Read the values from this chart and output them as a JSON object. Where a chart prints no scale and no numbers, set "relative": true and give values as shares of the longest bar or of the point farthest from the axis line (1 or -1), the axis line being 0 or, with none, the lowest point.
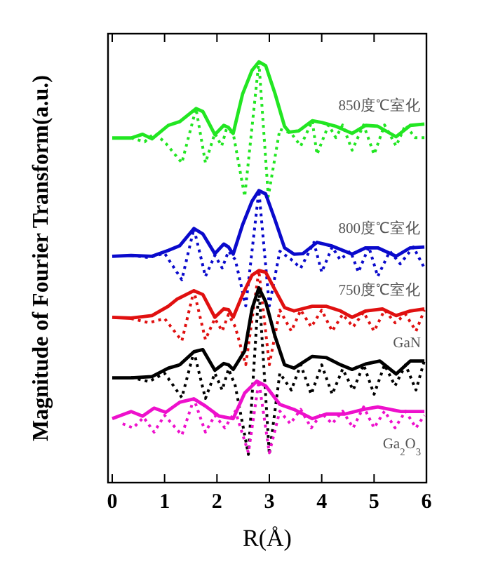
{
  "chart_data": {
    "type": "line",
    "relative": true,
    "xlabel": "R(Å)",
    "ylabel": "Magnitude of Fourier Transform(a.u.)",
    "xlim": [
      -0.08,
      6
    ],
    "xticks": [
      0,
      1,
      2,
      3,
      4,
      5,
      6
    ],
    "tick_labels": "x",
    "grid": false,
    "marker": "none",
    "series": [
      {
        "name": "850度℃室化",
        "color": "#22e622",
        "line_style": "solid",
        "x": [
          0,
          0.36,
          0.58,
          0.76,
          1.07,
          1.29,
          1.6,
          1.73,
          1.96,
          2.13,
          2.22,
          2.31,
          2.49,
          2.67,
          2.8,
          2.93,
          3.11,
          3.29,
          3.38,
          3.56,
          3.82,
          4.0,
          4.27,
          4.58,
          4.84,
          5.07,
          5.42,
          5.69,
          5.96
        ],
        "values": [
          0.819,
          0.819,
          0.828,
          0.817,
          0.849,
          0.858,
          0.889,
          0.882,
          0.827,
          0.849,
          0.844,
          0.83,
          0.924,
          0.98,
          1.0,
          0.991,
          0.924,
          0.847,
          0.833,
          0.836,
          0.86,
          0.856,
          0.847,
          0.83,
          0.849,
          0.847,
          0.822,
          0.849,
          0.852
        ]
      },
      {
        "color": "#22e622",
        "line_style": "dotted",
        "x": [
          0.36,
          0.62,
          0.8,
          1.0,
          1.33,
          1.6,
          1.78,
          1.96,
          2.09,
          2.18,
          2.31,
          2.53,
          2.8,
          2.98,
          3.2,
          3.42,
          3.6,
          3.82,
          3.91,
          4.13,
          4.27,
          4.4,
          4.58,
          4.8,
          5.0,
          5.2,
          5.42,
          5.6,
          5.78,
          5.96
        ],
        "values": [
          0.819,
          0.81,
          0.83,
          0.81,
          0.76,
          0.889,
          0.76,
          0.83,
          0.8,
          0.84,
          0.83,
          0.68,
          1.0,
          0.68,
          0.84,
          0.83,
          0.8,
          0.86,
          0.78,
          0.85,
          0.82,
          0.85,
          0.79,
          0.85,
          0.78,
          0.85,
          0.8,
          0.85,
          0.82,
          0.82
        ]
      },
      {
        "name": "800度℃室化",
        "color": "#0a0acc",
        "line_style": "solid",
        "x": [
          0,
          0.36,
          0.76,
          1.07,
          1.29,
          1.56,
          1.73,
          1.96,
          2.13,
          2.22,
          2.31,
          2.49,
          2.67,
          2.8,
          2.93,
          3.11,
          3.29,
          3.47,
          3.64,
          3.91,
          4.18,
          4.58,
          4.84,
          5.07,
          5.42,
          5.69,
          5.96
        ],
        "values": [
          0.538,
          0.54,
          0.538,
          0.552,
          0.563,
          0.604,
          0.591,
          0.544,
          0.567,
          0.56,
          0.543,
          0.613,
          0.669,
          0.694,
          0.686,
          0.624,
          0.558,
          0.543,
          0.544,
          0.571,
          0.563,
          0.543,
          0.558,
          0.558,
          0.538,
          0.558,
          0.56
        ]
      },
      {
        "color": "#0a0acc",
        "line_style": "dotted",
        "x": [
          0.36,
          0.7,
          1.0,
          1.33,
          1.56,
          1.78,
          1.96,
          2.1,
          2.22,
          2.35,
          2.55,
          2.8,
          3.0,
          3.2,
          3.42,
          3.6,
          3.85,
          4.0,
          4.2,
          4.35,
          4.55,
          4.7,
          4.9,
          5.07,
          5.3,
          5.5,
          5.75,
          5.96
        ],
        "values": [
          0.54,
          0.535,
          0.545,
          0.482,
          0.604,
          0.49,
          0.54,
          0.51,
          0.55,
          0.53,
          0.42,
          0.694,
          0.42,
          0.55,
          0.53,
          0.51,
          0.571,
          0.5,
          0.56,
          0.53,
          0.55,
          0.5,
          0.56,
          0.49,
          0.55,
          0.52,
          0.56,
          0.51
        ]
      },
      {
        "name": "750度℃室化",
        "color": "#e01010",
        "line_style": "solid",
        "x": [
          0,
          0.36,
          0.76,
          1.07,
          1.24,
          1.56,
          1.73,
          1.96,
          2.13,
          2.22,
          2.31,
          2.49,
          2.67,
          2.8,
          2.93,
          3.11,
          3.29,
          3.47,
          3.82,
          4.09,
          4.36,
          4.58,
          4.84,
          5.16,
          5.42,
          5.69,
          5.96
        ],
        "values": [
          0.393,
          0.391,
          0.397,
          0.419,
          0.436,
          0.456,
          0.447,
          0.393,
          0.413,
          0.411,
          0.393,
          0.447,
          0.493,
          0.504,
          0.5,
          0.458,
          0.416,
          0.408,
          0.419,
          0.419,
          0.408,
          0.393,
          0.408,
          0.413,
          0.397,
          0.408,
          0.413
        ]
      },
      {
        "color": "#e01010",
        "line_style": "dotted",
        "x": [
          0.36,
          0.7,
          1.0,
          1.33,
          1.56,
          1.78,
          1.96,
          2.1,
          2.22,
          2.35,
          2.55,
          2.8,
          3.0,
          3.2,
          3.42,
          3.6,
          3.8,
          4.0,
          4.2,
          4.4,
          4.6,
          4.8,
          5.0,
          5.2,
          5.4,
          5.6,
          5.8,
          5.96
        ],
        "values": [
          0.39,
          0.38,
          0.39,
          0.337,
          0.456,
          0.34,
          0.39,
          0.36,
          0.4,
          0.37,
          0.28,
          0.504,
          0.28,
          0.41,
          0.36,
          0.41,
          0.37,
          0.41,
          0.36,
          0.4,
          0.37,
          0.405,
          0.36,
          0.41,
          0.38,
          0.4,
          0.36,
          0.41
        ]
      },
      {
        "name": "GaN",
        "color": "#000000",
        "line_style": "solid",
        "x": [
          0,
          0.36,
          0.76,
          1.07,
          1.29,
          1.56,
          1.73,
          1.96,
          2.13,
          2.22,
          2.31,
          2.53,
          2.67,
          2.8,
          2.93,
          3.11,
          3.29,
          3.47,
          3.82,
          4.09,
          4.36,
          4.58,
          4.84,
          5.11,
          5.42,
          5.69,
          5.96
        ],
        "values": [
          0.249,
          0.249,
          0.252,
          0.272,
          0.28,
          0.311,
          0.316,
          0.267,
          0.283,
          0.28,
          0.269,
          0.313,
          0.413,
          0.463,
          0.43,
          0.347,
          0.28,
          0.272,
          0.3,
          0.297,
          0.28,
          0.269,
          0.282,
          0.289,
          0.258,
          0.289,
          0.289
        ]
      },
      {
        "color": "#000000",
        "line_style": "dotted",
        "x": [
          0.36,
          0.7,
          1.0,
          1.33,
          1.56,
          1.78,
          1.96,
          2.1,
          2.22,
          2.35,
          2.6,
          2.8,
          3.0,
          3.2,
          3.42,
          3.6,
          3.8,
          4.0,
          4.2,
          4.4,
          4.6,
          4.8,
          5.0,
          5.2,
          5.4,
          5.6,
          5.8,
          5.96
        ],
        "values": [
          0.25,
          0.24,
          0.26,
          0.202,
          0.311,
          0.2,
          0.26,
          0.22,
          0.27,
          0.23,
          0.067,
          0.463,
          0.067,
          0.26,
          0.22,
          0.28,
          0.21,
          0.28,
          0.21,
          0.27,
          0.22,
          0.28,
          0.21,
          0.28,
          0.23,
          0.28,
          0.22,
          0.29
        ]
      },
      {
        "name": "Ga$_{2}$O$_{3}$",
        "color": "#ee10cc",
        "line_style": "solid",
        "x": [
          0,
          0.36,
          0.58,
          0.8,
          1.02,
          1.29,
          1.56,
          1.78,
          2.04,
          2.31,
          2.53,
          2.76,
          2.93,
          3.2,
          3.47,
          3.82,
          4.09,
          4.44,
          4.8,
          5.07,
          5.51,
          5.96
        ],
        "values": [
          0.152,
          0.169,
          0.158,
          0.177,
          0.167,
          0.191,
          0.199,
          0.182,
          0.158,
          0.152,
          0.213,
          0.241,
          0.23,
          0.186,
          0.174,
          0.152,
          0.163,
          0.163,
          0.174,
          0.18,
          0.169,
          0.169
        ]
      },
      {
        "color": "#ee10cc",
        "line_style": "dotted",
        "x": [
          0.2,
          0.4,
          0.6,
          0.8,
          1.0,
          1.33,
          1.56,
          1.78,
          1.96,
          2.15,
          2.35,
          2.6,
          2.8,
          3.0,
          3.2,
          3.4,
          3.6,
          3.8,
          4.0,
          4.2,
          4.4,
          4.6,
          4.8,
          5.0,
          5.2,
          5.4,
          5.6,
          5.8,
          5.96
        ],
        "values": [
          0.14,
          0.13,
          0.155,
          0.12,
          0.16,
          0.113,
          0.199,
          0.12,
          0.16,
          0.13,
          0.17,
          0.071,
          0.241,
          0.071,
          0.17,
          0.14,
          0.174,
          0.13,
          0.165,
          0.14,
          0.17,
          0.13,
          0.18,
          0.13,
          0.17,
          0.13,
          0.17,
          0.13,
          0.16
        ]
      }
    ]
  }
}
